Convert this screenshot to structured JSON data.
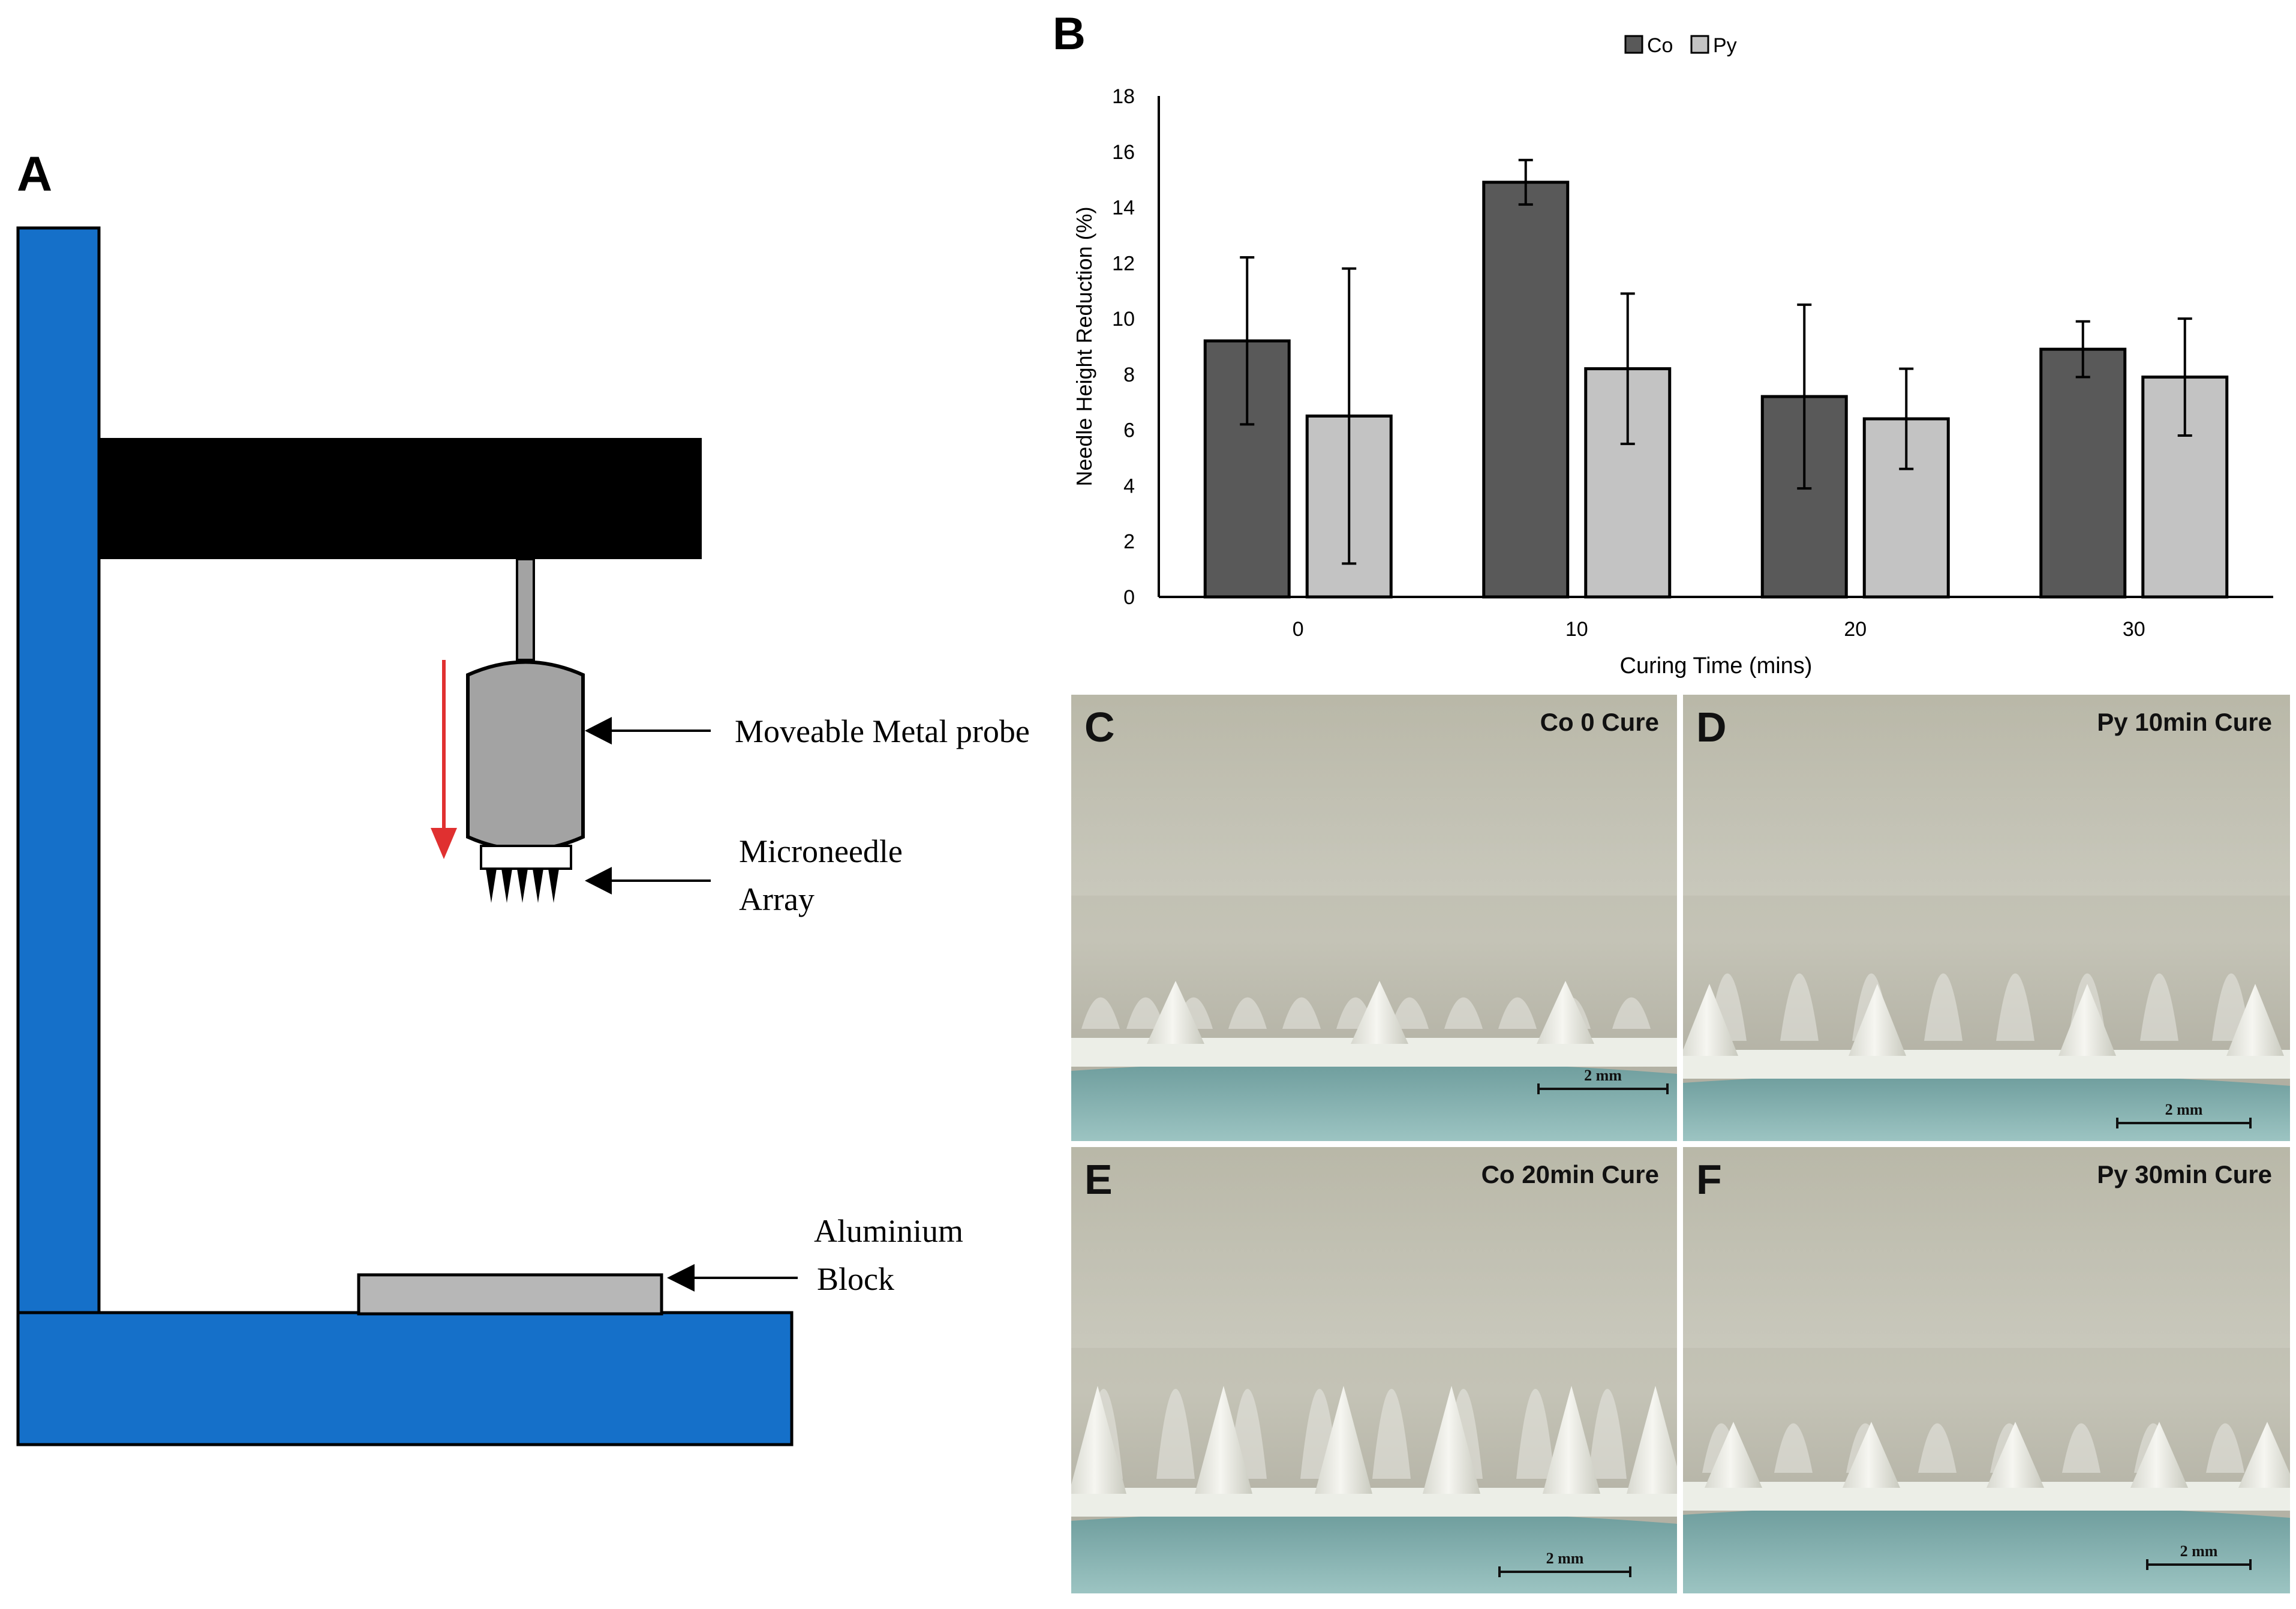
{
  "panel_a": {
    "letter": "A",
    "labels": {
      "probe": "Moveable Metal probe",
      "array_line1": "Microneedle",
      "array_line2": "Array",
      "block_line1": "Aluminium",
      "block_line2": "Block"
    },
    "colors": {
      "stand": "#1570c9",
      "arm": "#000000",
      "probe": "#a3a3a3",
      "block": "#b7b7b7",
      "arrow": "#e03030"
    }
  },
  "panel_b": {
    "letter": "B"
  },
  "chart_data": {
    "type": "bar",
    "categories": [
      "0",
      "10",
      "20",
      "30"
    ],
    "series": [
      {
        "name": "Co",
        "color": "#595959",
        "values": [
          9.2,
          14.9,
          7.2,
          8.9
        ],
        "error": [
          3.0,
          0.8,
          3.3,
          1.0
        ]
      },
      {
        "name": "Py",
        "color": "#c3c3c3",
        "values": [
          6.5,
          8.2,
          6.4,
          7.9
        ],
        "error": [
          5.3,
          2.7,
          1.8,
          2.1
        ]
      }
    ],
    "xlabel": "Curing Time (mins)",
    "ylabel": "Needle Height Reduction (%)",
    "ylim": [
      0,
      18
    ],
    "yticks": [
      "0",
      "2",
      "4",
      "6",
      "8",
      "10",
      "12",
      "14",
      "16",
      "18"
    ],
    "legend": "top-center",
    "grid": false
  },
  "photos": [
    {
      "letter": "C",
      "caption": "Co 0 Cure",
      "scale": "2 mm"
    },
    {
      "letter": "D",
      "caption": "Py 10min Cure",
      "scale": "2 mm"
    },
    {
      "letter": "E",
      "caption": "Co 20min Cure",
      "scale": "2 mm"
    },
    {
      "letter": "F",
      "caption": "Py 30min Cure",
      "scale": "2 mm"
    }
  ]
}
